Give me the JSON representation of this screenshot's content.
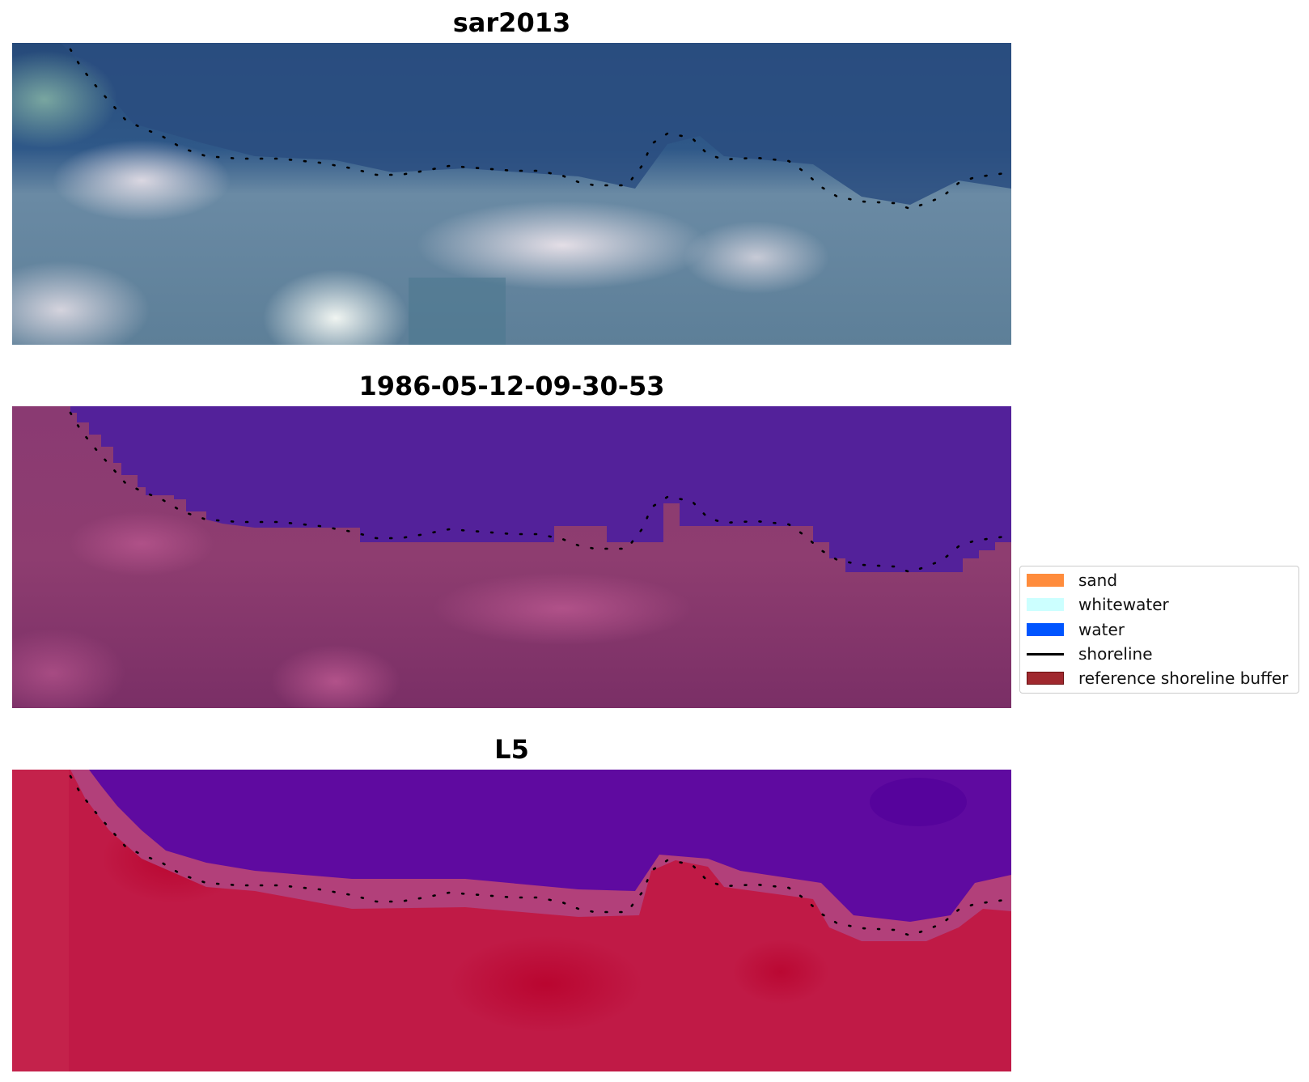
{
  "panels": [
    {
      "title": "sar2013"
    },
    {
      "title": "1986-05-12-09-30-53"
    },
    {
      "title": "L5"
    }
  ],
  "legend": {
    "items": [
      {
        "label": "sand",
        "color": "#ff8c3c",
        "kind": "patch"
      },
      {
        "label": "whitewater",
        "color": "#ccffff",
        "kind": "patch"
      },
      {
        "label": "water",
        "color": "#0055ff",
        "kind": "patch"
      },
      {
        "label": "shoreline",
        "color": "#000000",
        "kind": "line"
      },
      {
        "label": "reference shoreline buffer",
        "color": "#a0282e",
        "kind": "patch"
      }
    ]
  },
  "colors": {
    "rgb_water": "#28487a",
    "rgb_land": "#7a95a8",
    "classified_water": "#53219a",
    "classified_land": "#8a3a72",
    "ndwi_water": "#5f0aa0",
    "ndwi_land": "#c01a46",
    "shoreline_dots": "#000000"
  }
}
